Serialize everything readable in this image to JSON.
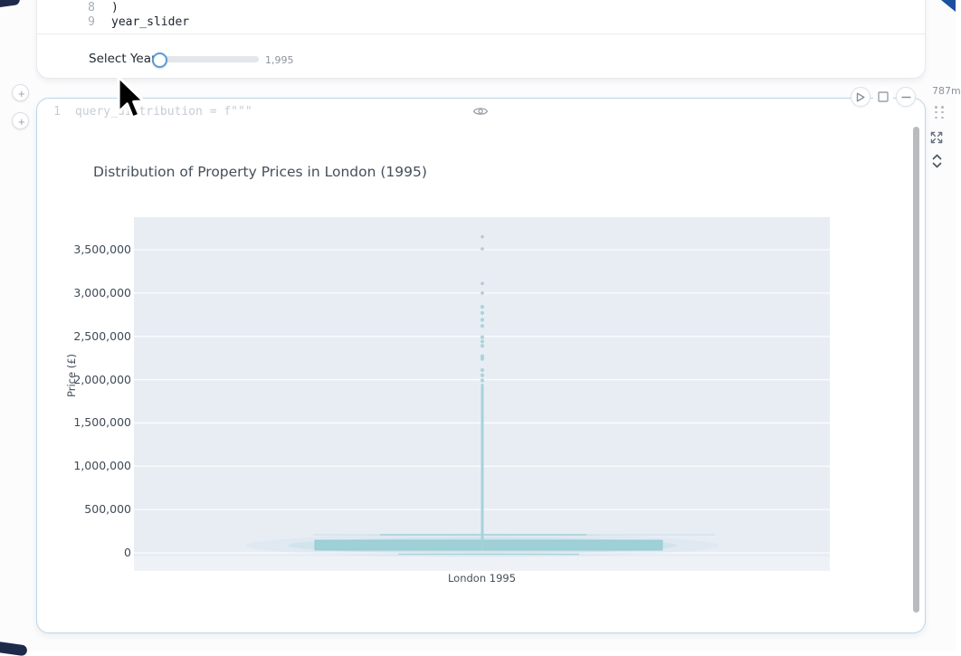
{
  "page": {
    "runtime_badge": "787m"
  },
  "icons": {
    "add_cell": "+",
    "eye": "eye",
    "play": "play-triangle",
    "stop": "square",
    "collapse": "minus",
    "drag_handle": "dots-grid",
    "expand": "arrows-out",
    "resize_vertical": "chevrons-up-down",
    "cursor": "arrow-pointer"
  },
  "top_cell": {
    "lines": [
      {
        "number": "8",
        "code": ")"
      },
      {
        "number": "9",
        "code": "year_slider"
      }
    ],
    "slider": {
      "label": "Select Year:",
      "value": "1,995"
    }
  },
  "chart_cell": {
    "collapsed_line": {
      "number": "1",
      "code": "query_distribution = f\"\"\""
    }
  },
  "chart_data": {
    "type": "box",
    "title": "Distribution of Property Prices in London (1995)",
    "ylabel": "Price (£)",
    "categories": [
      "London 1995"
    ],
    "yticks": [
      0,
      500000,
      1000000,
      1500000,
      2000000,
      2500000,
      3000000,
      3500000
    ],
    "ytick_labels": [
      "0",
      "500,000",
      "1,000,000",
      "1,500,000",
      "2,000,000",
      "2,500,000",
      "3,000,000",
      "3,500,000"
    ],
    "ylim": [
      -209000,
      3876000
    ],
    "grid": true,
    "legend": false,
    "colors": {
      "mark_teal": "#9ccfd7",
      "stem_teal": "#a2d1d8",
      "faint_dot_gray": "#b3bfc9",
      "plot_bg": "#e8edf4",
      "axis_text": "#3f4a57"
    },
    "series": [
      {
        "name": "London 1995",
        "whisker_low": 0,
        "box_bottom": 31000,
        "box_top": 146000,
        "whisker_high": 209000,
        "dense_points_range": [
          210000,
          1950000
        ],
        "outliers": [
          2840000,
          2770000,
          2690000,
          2620000,
          2490000,
          2440000,
          2390000,
          2270000,
          2240000,
          2110000,
          2050000,
          1990000
        ],
        "outliers_faint": [
          3650000,
          3510000,
          3110000,
          3000000
        ]
      }
    ]
  }
}
